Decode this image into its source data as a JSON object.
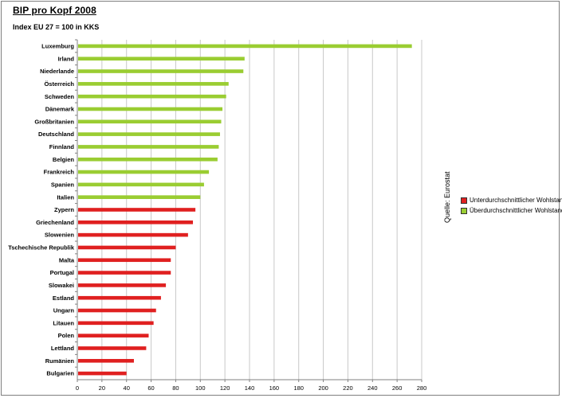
{
  "title": "BIP pro Kopf 2008",
  "subtitle": "Index EU 27 = 100 in KKS",
  "source_label": "Quelle: Eurostat",
  "colors": {
    "above": "#9acd32",
    "below": "#e02020",
    "grid": "#c8c8c8",
    "axis": "#808080"
  },
  "legend": {
    "items": [
      {
        "label": "Unterdurchschnittlicher Wohlstand",
        "color": "#e02020"
      },
      {
        "label": "Überdurchschnittlicher Wohlstand",
        "color": "#9acd32"
      }
    ]
  },
  "chart_data": {
    "type": "bar",
    "orientation": "horizontal",
    "title": "BIP pro Kopf 2008",
    "subtitle": "Index EU 27 = 100 in KKS",
    "xlim": [
      0,
      280
    ],
    "xticks": [
      0,
      20,
      40,
      60,
      80,
      100,
      120,
      140,
      160,
      180,
      200,
      220,
      240,
      260,
      280
    ],
    "grid": true,
    "legend_position": "right",
    "categories": [
      "Luxemburg",
      "Irland",
      "Niederlande",
      "Österreich",
      "Schweden",
      "Dänemark",
      "Großbritanien",
      "Deutschland",
      "Finnland",
      "Belgien",
      "Frankreich",
      "Spanien",
      "Italien",
      "Zypern",
      "Griechenland",
      "Slowenien",
      "Tschechische Republik",
      "Malta",
      "Portugal",
      "Slowakei",
      "Estland",
      "Ungarn",
      "Litauen",
      "Polen",
      "Lettland",
      "Rumänien",
      "Bulgarien"
    ],
    "values": [
      272,
      136,
      135,
      123,
      121,
      118,
      117,
      116,
      115,
      114,
      107,
      103,
      100,
      96,
      94,
      90,
      80,
      76,
      76,
      72,
      68,
      64,
      62,
      58,
      56,
      46,
      40
    ],
    "groups": [
      "above",
      "above",
      "above",
      "above",
      "above",
      "above",
      "above",
      "above",
      "above",
      "above",
      "above",
      "above",
      "above",
      "below",
      "below",
      "below",
      "below",
      "below",
      "below",
      "below",
      "below",
      "below",
      "below",
      "below",
      "below",
      "below",
      "below"
    ]
  }
}
